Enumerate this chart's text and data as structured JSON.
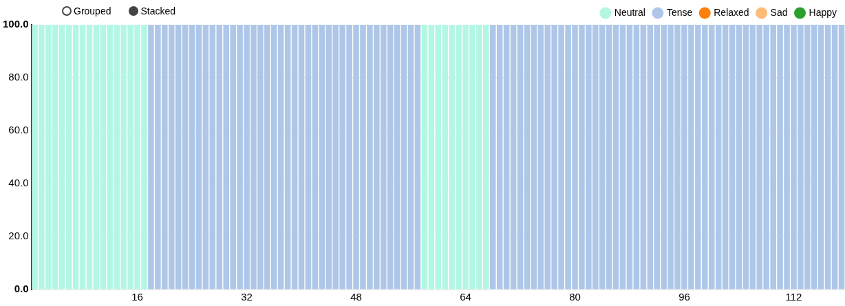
{
  "chart_data": {
    "type": "bar",
    "stacked": true,
    "legend": "top right",
    "grid": "y",
    "annotations": [
      "Grouped",
      "Stacked"
    ],
    "ylim": [
      0,
      100
    ],
    "yticks": [
      {
        "value": 0,
        "label": "0.0"
      },
      {
        "value": 20,
        "label": "20.0"
      },
      {
        "value": 40,
        "label": "40.0"
      },
      {
        "value": 60,
        "label": "60.0"
      },
      {
        "value": 80,
        "label": "80.0"
      },
      {
        "value": 100,
        "label": "100.0"
      }
    ],
    "categories": [
      null,
      null,
      null,
      null,
      null,
      null,
      null,
      null,
      null,
      null,
      null,
      null,
      null,
      null,
      null,
      "16",
      null,
      null,
      null,
      null,
      null,
      null,
      null,
      null,
      null,
      null,
      null,
      null,
      null,
      null,
      null,
      "32",
      null,
      null,
      null,
      null,
      null,
      null,
      null,
      null,
      null,
      null,
      null,
      null,
      null,
      null,
      null,
      "48",
      null,
      null,
      null,
      null,
      null,
      null,
      null,
      null,
      null,
      null,
      null,
      null,
      null,
      null,
      null,
      "64",
      null,
      null,
      null,
      null,
      null,
      null,
      null,
      null,
      null,
      null,
      null,
      null,
      null,
      null,
      null,
      "80",
      null,
      null,
      null,
      null,
      null,
      null,
      null,
      null,
      null,
      null,
      null,
      null,
      null,
      null,
      null,
      "96",
      null,
      null,
      null,
      null,
      null,
      null,
      null,
      null,
      null,
      null,
      null,
      null,
      null,
      null,
      null,
      "112",
      null,
      null,
      null,
      null,
      null,
      null,
      null
    ],
    "series": [
      {
        "name": "Neutral",
        "color": "#b3f7e3",
        "values": [
          100,
          100,
          100,
          100,
          100,
          100,
          100,
          100,
          100,
          100,
          100,
          100,
          100,
          100,
          100,
          100,
          100,
          0,
          0,
          0,
          0,
          0,
          0,
          0,
          0,
          0,
          0,
          0,
          0,
          0,
          0,
          0,
          0,
          0,
          0,
          0,
          0,
          0,
          0,
          0,
          0,
          0,
          0,
          0,
          0,
          0,
          0,
          0,
          0,
          0,
          0,
          0,
          0,
          0,
          0,
          0,
          0,
          100,
          100,
          100,
          100,
          100,
          100,
          100,
          100,
          100,
          100,
          0,
          0,
          0,
          0,
          0,
          0,
          0,
          0,
          0,
          0,
          0,
          0,
          0,
          0,
          0,
          0,
          0,
          0,
          0,
          0,
          0,
          0,
          0,
          0,
          0,
          0,
          0,
          0,
          0,
          0,
          0,
          0,
          0,
          0,
          0,
          0,
          0,
          0,
          0,
          0,
          0,
          0,
          0,
          0,
          0,
          0,
          0,
          0,
          0,
          0,
          0,
          0
        ]
      },
      {
        "name": "Tense",
        "color": "#aec7e8",
        "values": [
          0,
          0,
          0,
          0,
          0,
          0,
          0,
          0,
          0,
          0,
          0,
          0,
          0,
          0,
          0,
          0,
          0,
          100,
          100,
          100,
          100,
          100,
          100,
          100,
          100,
          100,
          100,
          100,
          100,
          100,
          100,
          100,
          100,
          100,
          100,
          100,
          100,
          100,
          100,
          100,
          100,
          100,
          100,
          100,
          100,
          100,
          100,
          100,
          100,
          100,
          100,
          100,
          100,
          100,
          100,
          100,
          100,
          0,
          0,
          0,
          0,
          0,
          0,
          0,
          0,
          0,
          0,
          100,
          100,
          100,
          100,
          100,
          100,
          100,
          100,
          100,
          100,
          100,
          100,
          100,
          100,
          100,
          100,
          100,
          100,
          100,
          100,
          100,
          100,
          100,
          100,
          100,
          100,
          100,
          100,
          100,
          100,
          100,
          100,
          100,
          100,
          100,
          100,
          100,
          100,
          100,
          100,
          100,
          100,
          100,
          100,
          100,
          100,
          100,
          100,
          100,
          100,
          100,
          100
        ]
      },
      {
        "name": "Relaxed",
        "color": "#ff7f0e",
        "values": [
          0,
          0,
          0,
          0,
          0,
          0,
          0,
          0,
          0,
          0,
          0,
          0,
          0,
          0,
          0,
          0,
          0,
          0,
          0,
          0,
          0,
          0,
          0,
          0,
          0,
          0,
          0,
          0,
          0,
          0,
          0,
          0,
          0,
          0,
          0,
          0,
          0,
          0,
          0,
          0,
          0,
          0,
          0,
          0,
          0,
          0,
          0,
          0,
          0,
          0,
          0,
          0,
          0,
          0,
          0,
          0,
          0,
          0,
          0,
          0,
          0,
          0,
          0,
          0,
          0,
          0,
          0,
          0,
          0,
          0,
          0,
          0,
          0,
          0,
          0,
          0,
          0,
          0,
          0,
          0,
          0,
          0,
          0,
          0,
          0,
          0,
          0,
          0,
          0,
          0,
          0,
          0,
          0,
          0,
          0,
          0,
          0,
          0,
          0,
          0,
          0,
          0,
          0,
          0,
          0,
          0,
          0,
          0,
          0,
          0,
          0,
          0,
          0,
          0,
          0,
          0,
          0,
          0,
          0
        ]
      },
      {
        "name": "Sad",
        "color": "#ffbb78",
        "values": [
          0,
          0,
          0,
          0,
          0,
          0,
          0,
          0,
          0,
          0,
          0,
          0,
          0,
          0,
          0,
          0,
          0,
          0,
          0,
          0,
          0,
          0,
          0,
          0,
          0,
          0,
          0,
          0,
          0,
          0,
          0,
          0,
          0,
          0,
          0,
          0,
          0,
          0,
          0,
          0,
          0,
          0,
          0,
          0,
          0,
          0,
          0,
          0,
          0,
          0,
          0,
          0,
          0,
          0,
          0,
          0,
          0,
          0,
          0,
          0,
          0,
          0,
          0,
          0,
          0,
          0,
          0,
          0,
          0,
          0,
          0,
          0,
          0,
          0,
          0,
          0,
          0,
          0,
          0,
          0,
          0,
          0,
          0,
          0,
          0,
          0,
          0,
          0,
          0,
          0,
          0,
          0,
          0,
          0,
          0,
          0,
          0,
          0,
          0,
          0,
          0,
          0,
          0,
          0,
          0,
          0,
          0,
          0,
          0,
          0,
          0,
          0,
          0,
          0,
          0,
          0,
          0,
          0,
          0
        ]
      },
      {
        "name": "Happy",
        "color": "#2ca02c",
        "values": [
          0,
          0,
          0,
          0,
          0,
          0,
          0,
          0,
          0,
          0,
          0,
          0,
          0,
          0,
          0,
          0,
          0,
          0,
          0,
          0,
          0,
          0,
          0,
          0,
          0,
          0,
          0,
          0,
          0,
          0,
          0,
          0,
          0,
          0,
          0,
          0,
          0,
          0,
          0,
          0,
          0,
          0,
          0,
          0,
          0,
          0,
          0,
          0,
          0,
          0,
          0,
          0,
          0,
          0,
          0,
          0,
          0,
          0,
          0,
          0,
          0,
          0,
          0,
          0,
          0,
          0,
          0,
          0,
          0,
          0,
          0,
          0,
          0,
          0,
          0,
          0,
          0,
          0,
          0,
          0,
          0,
          0,
          0,
          0,
          0,
          0,
          0,
          0,
          0,
          0,
          0,
          0,
          0,
          0,
          0,
          0,
          0,
          0,
          0,
          0,
          0,
          0,
          0,
          0,
          0,
          0,
          0,
          0,
          0,
          0,
          0,
          0,
          0,
          0,
          0,
          0,
          0,
          0,
          0
        ]
      }
    ]
  }
}
